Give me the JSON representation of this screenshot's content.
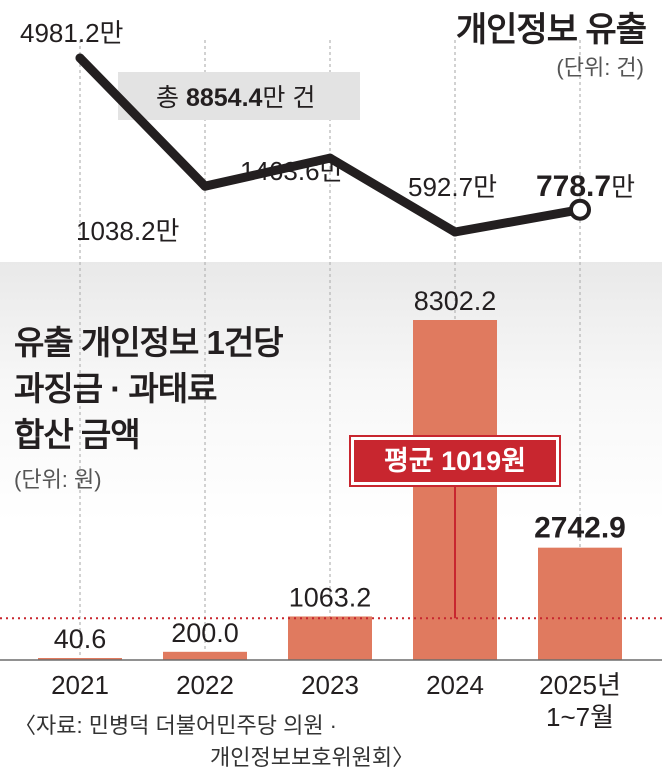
{
  "colors": {
    "line": "#231f20",
    "bar": "#e07a5f",
    "avg": "#c8262f",
    "total_bg": "#e3e3e3"
  },
  "chart_data": [
    {
      "type": "line",
      "title": "개인정보 유출",
      "unit_note": "(단위: 건)",
      "x": [
        "2021",
        "2022",
        "2023",
        "2024",
        "2025년 1~7월"
      ],
      "values": [
        4981.2,
        1038.2,
        1463.6,
        592.7,
        778.7
      ],
      "value_labels": [
        "4981.2",
        "1038.2",
        "1463.6",
        "592.7",
        "778.7"
      ],
      "value_suffix": "만",
      "annotation": {
        "prefix": "총 ",
        "number": "8854.4",
        "suffix": "만 건"
      }
    },
    {
      "type": "bar",
      "title_lines": [
        "유출 개인정보 1건당",
        "과징금 · 과태료",
        "합산 금액"
      ],
      "unit_note": "(단위: 원)",
      "categories": [
        "2021",
        "2022",
        "2023",
        "2024",
        "2025년 1~7월"
      ],
      "values": [
        40.6,
        200.0,
        1063.2,
        8302.2,
        2742.9
      ],
      "value_labels": [
        "40.6",
        "200.0",
        "1063.2",
        "8302.2",
        "2742.9"
      ],
      "reference_line": {
        "value": 1019,
        "label": "평균 1019원"
      }
    }
  ],
  "axis": {
    "year_labels": [
      "2021",
      "2022",
      "2023",
      "2024",
      "2025년"
    ],
    "last_sub": "1~7월"
  },
  "source_lines": [
    "〈자료: 민병덕 더불어민주당 의원 ·",
    "개인정보보호위원회〉"
  ]
}
